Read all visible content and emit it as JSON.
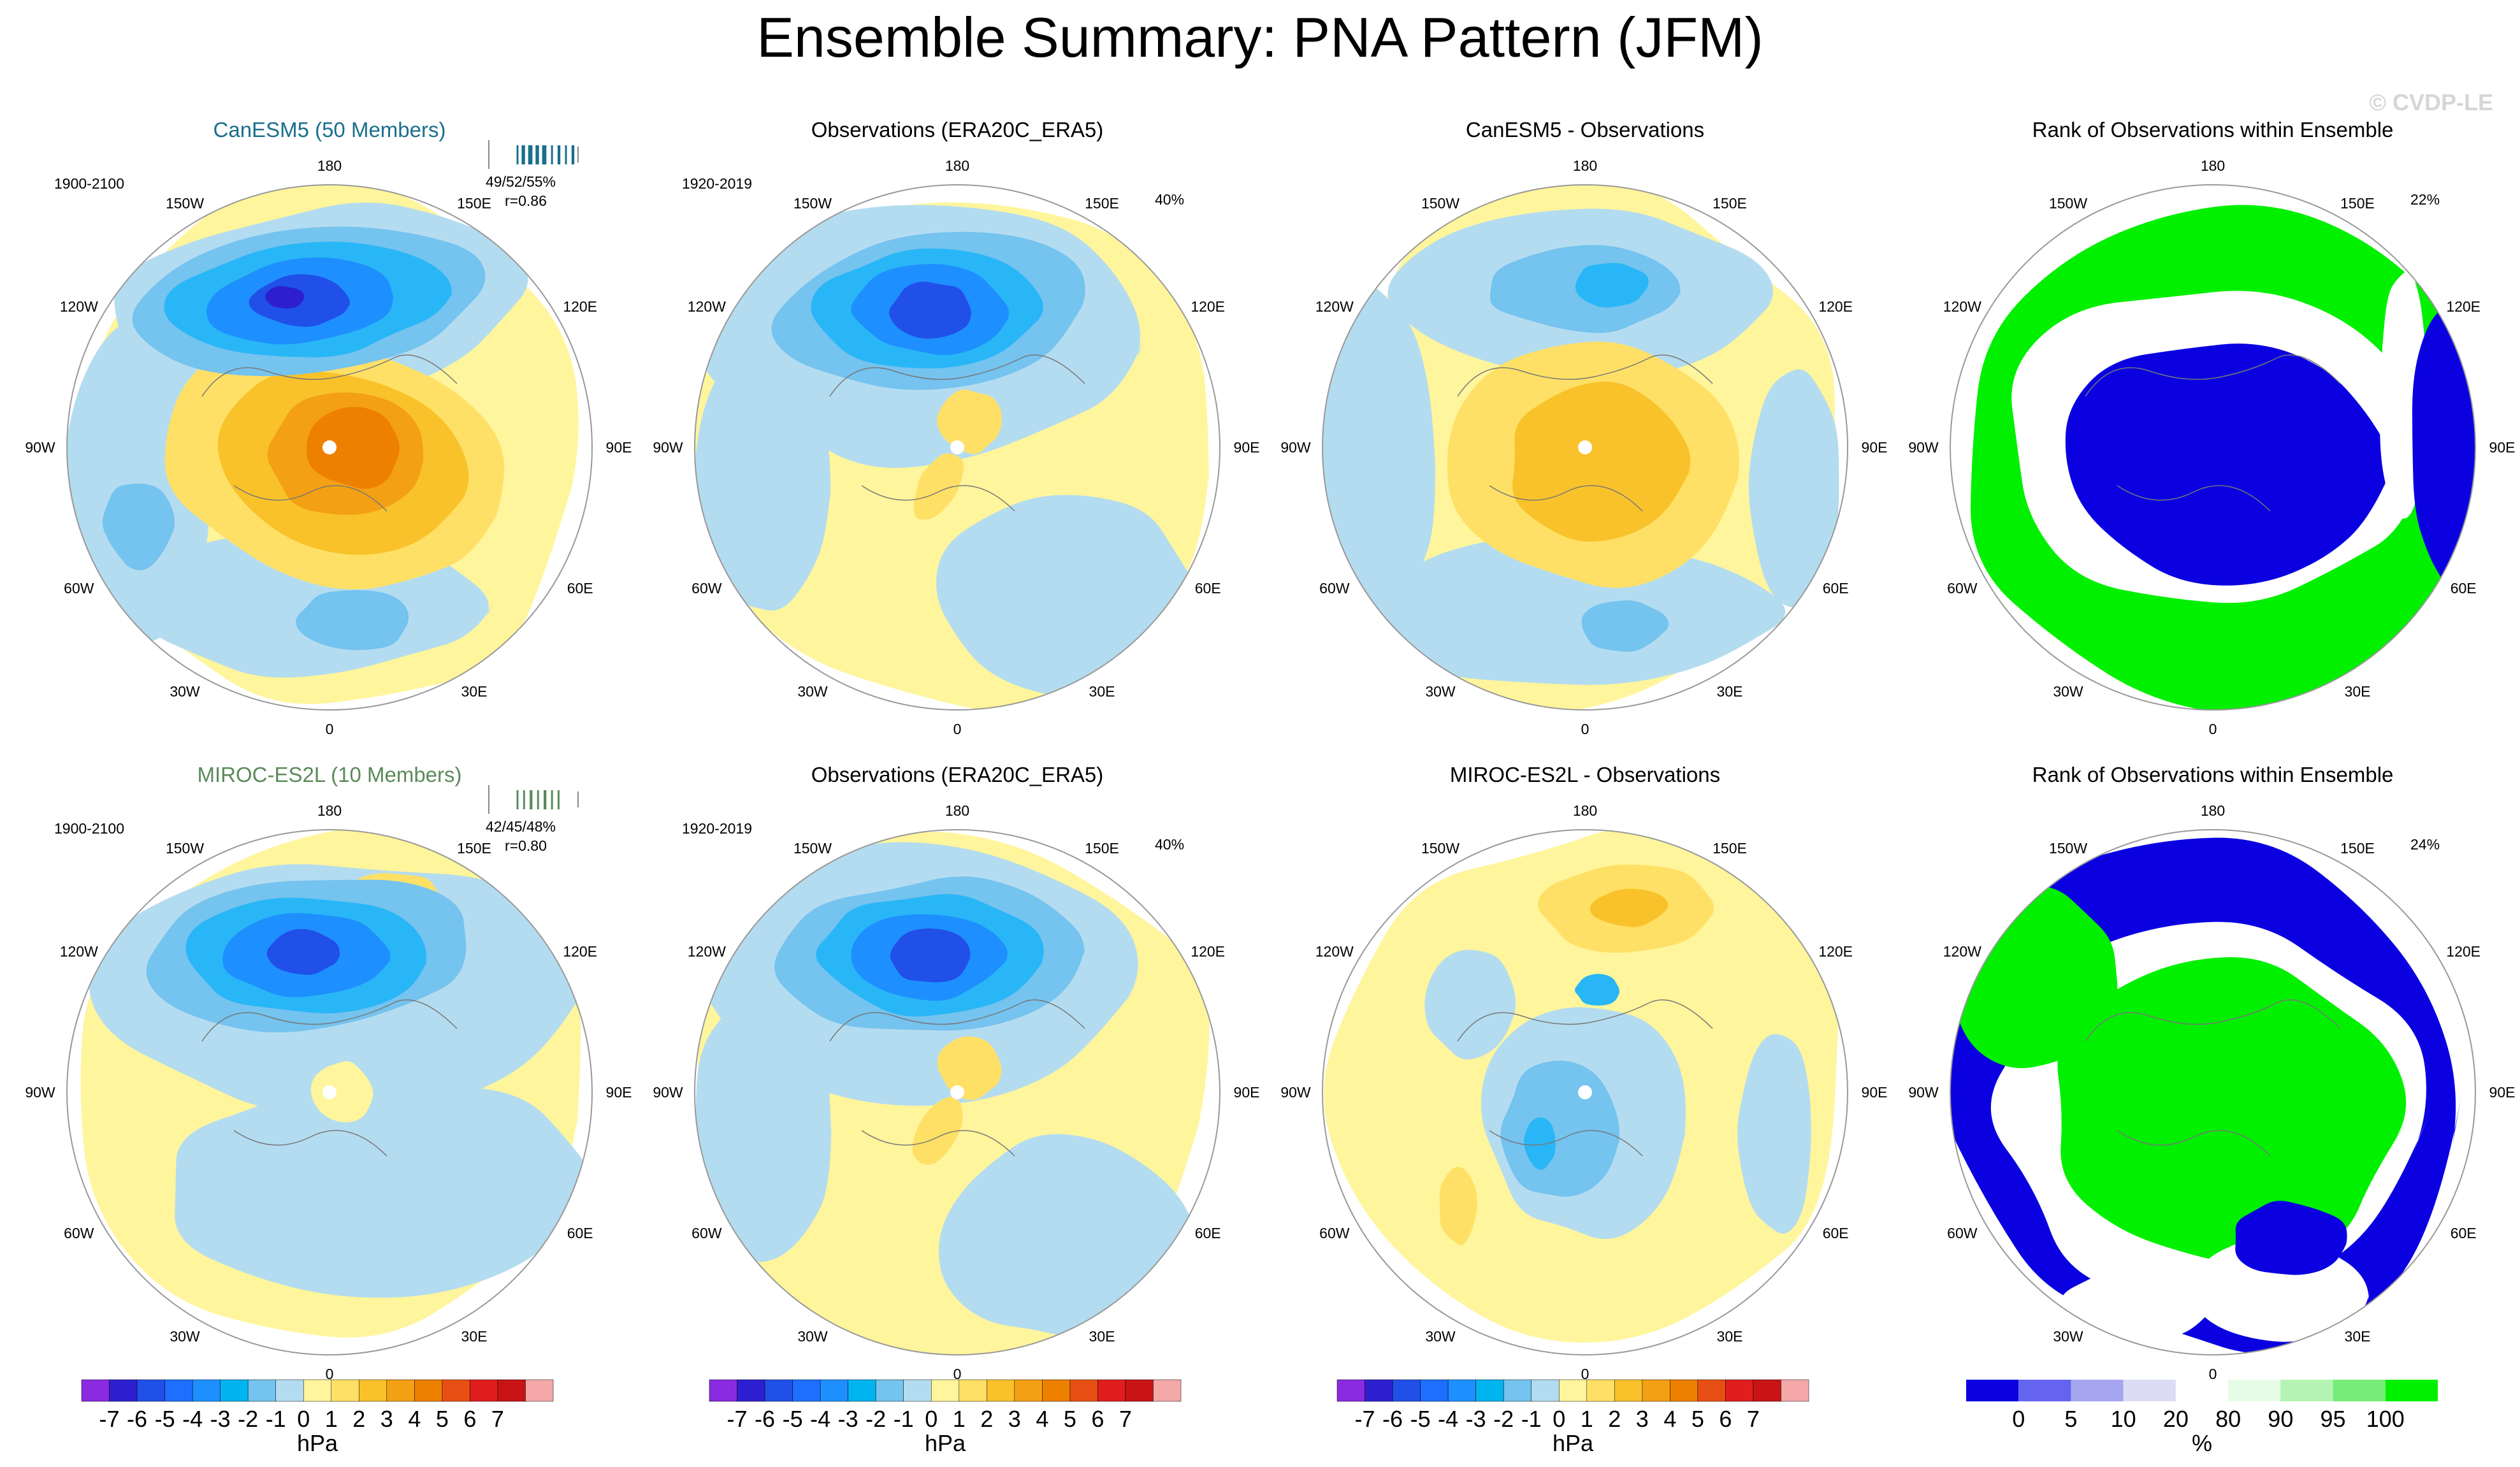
{
  "figure": {
    "title": "Ensemble Summary: PNA Pattern (JFM)",
    "watermark": "© CVDP-LE"
  },
  "colors": {
    "ocean_background": "#b4dcf0",
    "neutral_yellow": "#fff59c",
    "positive": [
      "#ffe066",
      "#f9c22a",
      "#f3a014",
      "#ee8000"
    ],
    "negative": [
      "#75c3ef",
      "#29b6f6",
      "#1e8fff",
      "#2050e8",
      "#2d1fd0"
    ],
    "rank_low": "#0a00e0",
    "rank_high": "#00f000",
    "rank_mid": "#ffffff"
  },
  "longitude_labels": [
    "180",
    "150E",
    "120E",
    "90E",
    "60E",
    "30E",
    "0",
    "30W",
    "60W",
    "90W",
    "120W",
    "150W"
  ],
  "chart_data": [
    {
      "type": "heatmap",
      "row": 1,
      "col": 1,
      "title": "CanESM5 (50 Members)",
      "title_color": "#1a6f8c",
      "period": "1900-2100",
      "stats": "49/52/55%",
      "corr": "r=0.86",
      "units": "hPa",
      "max_anomaly_hPa": 4,
      "min_anomaly_hPa": -6
    },
    {
      "type": "heatmap",
      "row": 1,
      "col": 2,
      "title": "Observations (ERA20C_ERA5)",
      "period": "1920-2019",
      "pct": "40%",
      "units": "hPa",
      "max_anomaly_hPa": 1,
      "min_anomaly_hPa": -5
    },
    {
      "type": "heatmap",
      "row": 1,
      "col": 3,
      "title": "CanESM5 - Observations",
      "units": "hPa",
      "max_anomaly_hPa": 3,
      "min_anomaly_hPa": -2
    },
    {
      "type": "heatmap",
      "row": 1,
      "col": 4,
      "title": "Rank of Observations within Ensemble",
      "pct": "22%",
      "units": "%"
    },
    {
      "type": "heatmap",
      "row": 2,
      "col": 1,
      "title": "MIROC-ES2L (10 Members)",
      "title_color": "#5a8a5a",
      "period": "1900-2100",
      "stats": "42/45/48%",
      "corr": "r=0.80",
      "units": "hPa",
      "max_anomaly_hPa": 1,
      "min_anomaly_hPa": -5
    },
    {
      "type": "heatmap",
      "row": 2,
      "col": 2,
      "title": "Observations (ERA20C_ERA5)",
      "period": "1920-2019",
      "pct": "40%",
      "units": "hPa",
      "max_anomaly_hPa": 1,
      "min_anomaly_hPa": -5
    },
    {
      "type": "heatmap",
      "row": 2,
      "col": 3,
      "title": "MIROC-ES2L - Observations",
      "units": "hPa",
      "max_anomaly_hPa": 2,
      "min_anomaly_hPa": -2
    },
    {
      "type": "heatmap",
      "row": 2,
      "col": 4,
      "title": "Rank of Observations within Ensemble",
      "pct": "24%",
      "units": "%"
    }
  ],
  "colorbar_hpa": {
    "labels": [
      "-7",
      "-6",
      "-5",
      "-4",
      "-3",
      "-2",
      "-1",
      "0",
      "1",
      "2",
      "3",
      "4",
      "5",
      "6",
      "7"
    ],
    "colors": [
      "#8a2be2",
      "#2d1fd0",
      "#2050e8",
      "#1e6fff",
      "#1e8fff",
      "#00b4f0",
      "#75c3ef",
      "#b4dcf0",
      "#fff59c",
      "#ffe066",
      "#f9c22a",
      "#f3a014",
      "#ee8000",
      "#e84f14",
      "#e01e1e",
      "#c81414",
      "#f4a8a8"
    ],
    "units": "hPa"
  },
  "colorbar_rank": {
    "labels": [
      "0",
      "5",
      "10",
      "20",
      "80",
      "90",
      "95",
      "100"
    ],
    "colors": [
      "#0a00e0",
      "#6464f0",
      "#a6a6f0",
      "#dcdcf4",
      "#ffffff",
      "#e6fce6",
      "#b4f4b4",
      "#78ec78",
      "#00f000"
    ],
    "units": "%"
  }
}
